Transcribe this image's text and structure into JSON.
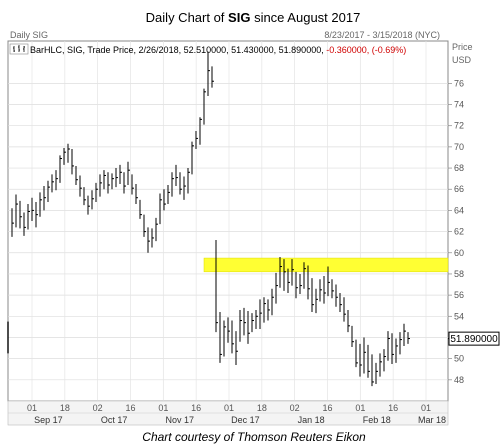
{
  "chart_data": {
    "type": "ohlc",
    "title_prefix": "Daily Chart of ",
    "title_ticker": "SIG",
    "title_suffix": " since August 2017",
    "header_left": "Daily SIG",
    "header_right": "8/23/2017 - 3/15/2018 (NYC)",
    "axis_unit_top": "Price",
    "axis_unit_bottom": "USD",
    "legend_prefix": "BarHLC, SIG, Trade Price, 2/26/2018, 52.510000, 51.430000, 51.890000,",
    "legend_change": "-0.360000, (-0.69%)",
    "last_price_label": "51.890000",
    "last_price": 51.89,
    "credit": "Chart courtesy of Thomson Reuters Eikon",
    "ylim": [
      46,
      80
    ],
    "y_ticks": [
      "48",
      "50",
      "52",
      "54",
      "56",
      "58",
      "60",
      "62",
      "64",
      "66",
      "68",
      "70",
      "72",
      "74",
      "76"
    ],
    "x_ticks": [
      "01",
      "18",
      "02",
      "16",
      "01",
      "16",
      "01",
      "18",
      "02",
      "16",
      "01",
      "16",
      "01"
    ],
    "months": [
      "Sep 17",
      "Oct 17",
      "Nov 17",
      "Dec 17",
      "Jan 18",
      "Feb 18",
      "Mar 18"
    ],
    "highlight_zone": [
      58.2,
      59.5
    ],
    "highlight_color": "#ffff33",
    "bar_color": "#000000",
    "bars": [
      [
        64.2,
        61.5,
        62.8
      ],
      [
        65.5,
        62.4,
        64.6
      ],
      [
        64.9,
        62.3,
        63.4
      ],
      [
        63.8,
        61.6,
        62.4
      ],
      [
        64.6,
        62.2,
        63.9
      ],
      [
        65.2,
        63.0,
        64.0
      ],
      [
        64.8,
        62.4,
        63.6
      ],
      [
        65.7,
        63.4,
        65.0
      ],
      [
        66.3,
        64.0,
        65.2
      ],
      [
        66.8,
        64.8,
        66.2
      ],
      [
        67.4,
        65.7,
        66.7
      ],
      [
        67.8,
        65.9,
        67.0
      ],
      [
        69.2,
        66.6,
        68.9
      ],
      [
        69.9,
        68.3,
        69.5
      ],
      [
        70.3,
        68.5,
        69.8
      ],
      [
        69.8,
        67.4,
        68.2
      ],
      [
        68.2,
        66.4,
        66.9
      ],
      [
        67.3,
        65.3,
        66.1
      ],
      [
        66.2,
        64.5,
        65.0
      ],
      [
        65.4,
        63.6,
        64.4
      ],
      [
        65.9,
        64.1,
        65.1
      ],
      [
        66.6,
        64.8,
        66.0
      ],
      [
        67.4,
        65.3,
        66.6
      ],
      [
        67.8,
        66.0,
        67.3
      ],
      [
        67.6,
        65.6,
        66.4
      ],
      [
        67.5,
        66.0,
        67.0
      ],
      [
        68.0,
        66.2,
        67.1
      ],
      [
        68.3,
        66.5,
        67.6
      ],
      [
        67.6,
        65.6,
        66.3
      ],
      [
        68.6,
        66.4,
        67.8
      ],
      [
        67.4,
        65.5,
        66.1
      ],
      [
        66.5,
        64.6,
        65.2
      ],
      [
        65.0,
        63.2,
        63.6
      ],
      [
        63.6,
        61.5,
        62.0
      ],
      [
        62.4,
        60.0,
        61.1
      ],
      [
        62.3,
        60.5,
        61.4
      ],
      [
        63.3,
        61.1,
        62.7
      ],
      [
        65.6,
        62.7,
        65.0
      ],
      [
        66.0,
        64.0,
        64.6
      ],
      [
        66.4,
        64.6,
        65.7
      ],
      [
        67.6,
        65.3,
        67.0
      ],
      [
        68.3,
        66.3,
        67.1
      ],
      [
        67.6,
        65.5,
        66.0
      ],
      [
        67.2,
        65.0,
        66.3
      ],
      [
        68.0,
        65.6,
        67.6
      ],
      [
        70.5,
        67.4,
        70.1
      ],
      [
        71.5,
        69.8,
        70.8
      ],
      [
        72.8,
        70.2,
        72.6
      ],
      [
        75.5,
        72.1,
        75.2
      ],
      [
        79.0,
        74.8,
        77.2
      ],
      [
        77.6,
        75.6,
        76.2
      ],
      [
        61.2,
        52.5,
        53.4
      ],
      [
        54.4,
        49.6,
        50.4
      ],
      [
        53.6,
        50.2,
        53.0
      ],
      [
        53.9,
        51.5,
        52.6
      ],
      [
        53.6,
        50.5,
        51.4
      ],
      [
        52.6,
        49.4,
        50.7
      ],
      [
        54.6,
        51.6,
        53.6
      ],
      [
        54.8,
        52.2,
        53.4
      ],
      [
        54.5,
        51.4,
        52.4
      ],
      [
        54.3,
        52.5,
        53.6
      ],
      [
        54.6,
        52.8,
        54.0
      ],
      [
        55.6,
        52.8,
        54.3
      ],
      [
        55.8,
        53.4,
        55.2
      ],
      [
        55.6,
        53.6,
        54.6
      ],
      [
        56.6,
        54.1,
        55.8
      ],
      [
        58.1,
        55.2,
        56.9
      ],
      [
        59.6,
        56.7,
        58.7
      ],
      [
        59.4,
        56.4,
        58.2
      ],
      [
        58.5,
        56.2,
        57.2
      ],
      [
        59.4,
        56.9,
        58.4
      ],
      [
        58.2,
        55.7,
        56.7
      ],
      [
        58.0,
        56.1,
        56.9
      ],
      [
        59.1,
        56.6,
        58.5
      ],
      [
        58.8,
        55.6,
        56.6
      ],
      [
        57.6,
        54.4,
        55.1
      ],
      [
        56.6,
        54.3,
        55.6
      ],
      [
        57.5,
        55.4,
        56.5
      ],
      [
        57.8,
        55.2,
        56.2
      ],
      [
        58.7,
        55.9,
        57.2
      ],
      [
        57.5,
        55.7,
        56.4
      ],
      [
        57.0,
        54.9,
        55.8
      ],
      [
        56.2,
        54.4,
        55.1
      ],
      [
        55.8,
        53.5,
        54.2
      ],
      [
        54.6,
        52.5,
        53.1
      ],
      [
        53.1,
        51.1,
        51.6
      ],
      [
        51.8,
        49.2,
        49.6
      ],
      [
        51.4,
        48.3,
        49.4
      ],
      [
        52.0,
        48.6,
        50.6
      ],
      [
        51.3,
        48.2,
        48.8
      ],
      [
        50.4,
        47.4,
        47.8
      ],
      [
        49.6,
        47.6,
        48.8
      ],
      [
        50.5,
        48.3,
        49.7
      ],
      [
        50.9,
        48.8,
        50.2
      ],
      [
        52.6,
        49.8,
        51.9
      ],
      [
        52.4,
        49.5,
        50.4
      ],
      [
        51.9,
        49.6,
        51.2
      ],
      [
        52.5,
        50.4,
        51.8
      ],
      [
        53.3,
        51.2,
        52.6
      ],
      [
        52.5,
        51.4,
        51.9
      ]
    ]
  }
}
